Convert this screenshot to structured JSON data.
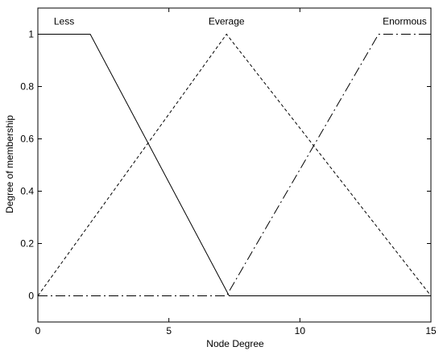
{
  "chart_data": {
    "type": "line",
    "title": "",
    "xlabel": "Node Degree",
    "ylabel": "Degree of membership",
    "xlim": [
      0,
      15
    ],
    "ylim": [
      -0.1,
      1.1
    ],
    "x_ticks": [
      {
        "value": 0,
        "label": "0"
      },
      {
        "value": 5,
        "label": "5"
      },
      {
        "value": 10,
        "label": "10"
      },
      {
        "value": 15,
        "label": "15"
      }
    ],
    "y_ticks": [
      {
        "value": 0,
        "label": "0"
      },
      {
        "value": 0.2,
        "label": "0.2"
      },
      {
        "value": 0.4,
        "label": "0.4"
      },
      {
        "value": 0.6,
        "label": "0.6"
      },
      {
        "value": 0.8,
        "label": "0.8"
      },
      {
        "value": 1,
        "label": "1"
      }
    ],
    "grid": false,
    "series": [
      {
        "name": "Less",
        "line_style": "solid",
        "color": "#000000",
        "points": [
          {
            "x": 0,
            "y": 1
          },
          {
            "x": 2,
            "y": 1
          },
          {
            "x": 7.3,
            "y": 0
          },
          {
            "x": 15,
            "y": 0
          }
        ],
        "label_at": {
          "x": 1,
          "y": 1.05
        }
      },
      {
        "name": "Everage",
        "line_style": "dashed",
        "color": "#000000",
        "points": [
          {
            "x": 0,
            "y": 0
          },
          {
            "x": 7.2,
            "y": 1
          },
          {
            "x": 15,
            "y": 0
          }
        ],
        "label_at": {
          "x": 7.2,
          "y": 1.05
        }
      },
      {
        "name": "Enormous",
        "line_style": "dashdot",
        "color": "#000000",
        "points": [
          {
            "x": 0,
            "y": 0
          },
          {
            "x": 7.2,
            "y": 0
          },
          {
            "x": 13,
            "y": 1
          },
          {
            "x": 15,
            "y": 1
          }
        ],
        "label_at": {
          "x": 14,
          "y": 1.05
        }
      }
    ]
  }
}
